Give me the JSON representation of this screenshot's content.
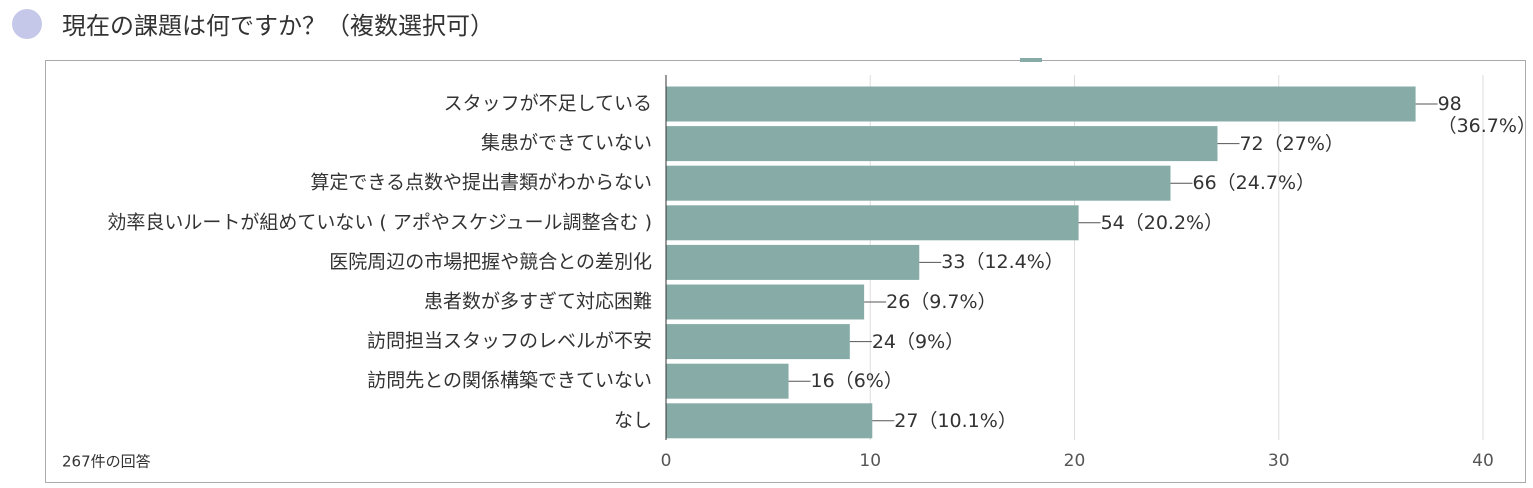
{
  "title": "現在の課題は何ですか？（複数選択可）",
  "footer": "267件の回答",
  "chart_data": {
    "type": "bar",
    "orientation": "horizontal",
    "categories": [
      "スタッフが不足している",
      "集患ができていない",
      "算定できる点数や提出書類がわからない",
      "効率良いルートが組めていない ( アポやスケジュール調整含む )",
      "医院周辺の市場把握や競合との差別化",
      "患者数が多すぎて対応困難",
      "訪問担当スタッフのレベルが不安",
      "訪問先との関係構築できていない",
      "なし"
    ],
    "values": [
      36.7,
      27,
      24.7,
      20.2,
      12.4,
      9.7,
      9,
      6,
      10.1
    ],
    "value_labels": [
      "98（36.7%）",
      "72（27%）",
      "66（24.7%）",
      "54（20.2%）",
      "33（12.4%）",
      "26（9.7%）",
      "24（9%）",
      "16（6%）",
      "27（10.1%）"
    ],
    "color": "#87aca8",
    "xlim": [
      0,
      40
    ],
    "xticks": [
      0,
      10,
      20,
      30,
      40
    ],
    "grid": true
  }
}
